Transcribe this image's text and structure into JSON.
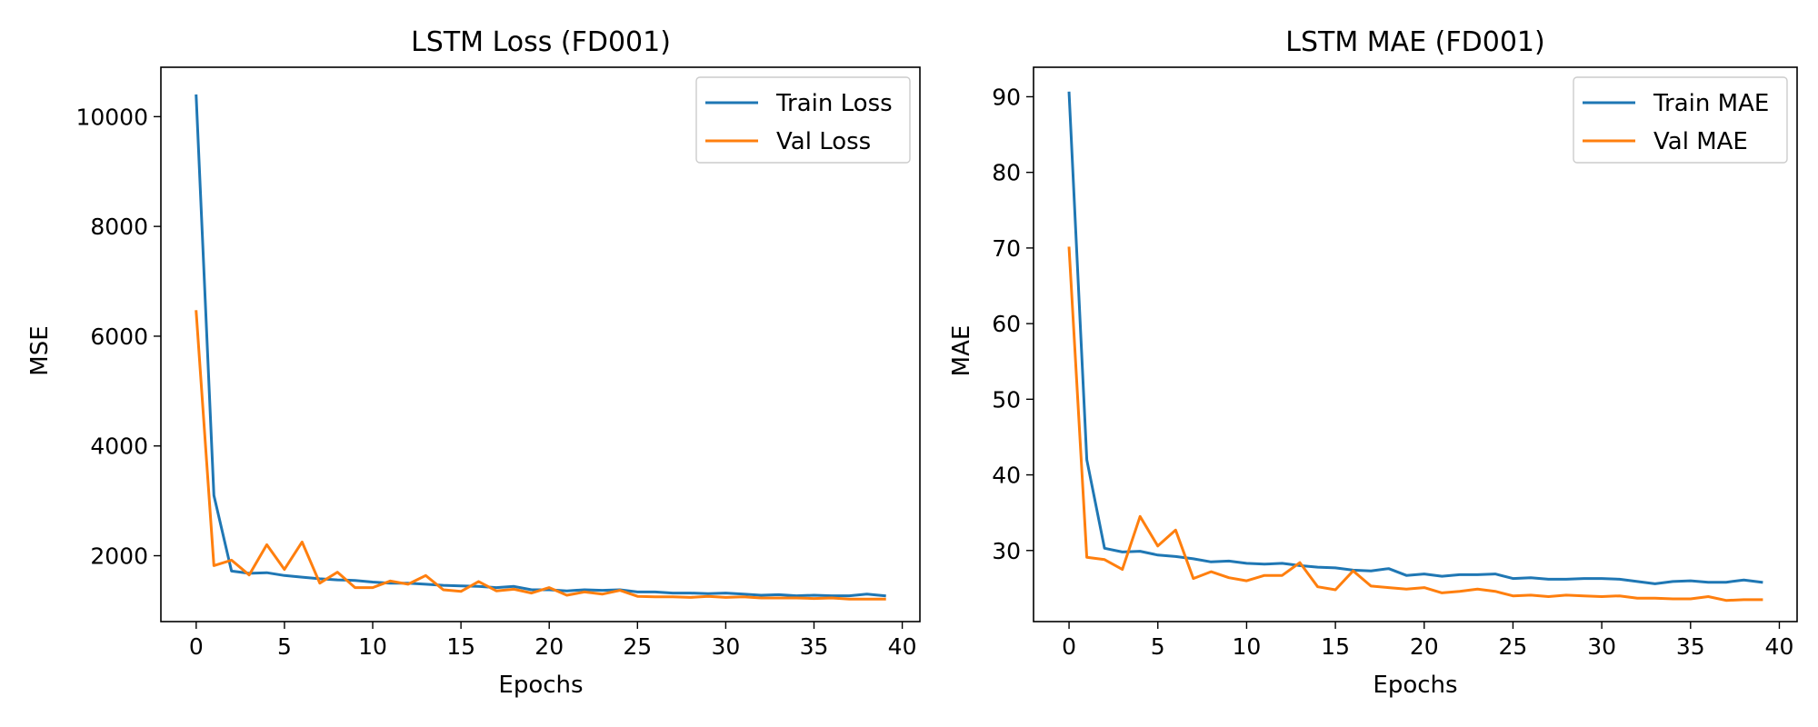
{
  "chart_data": [
    {
      "type": "line",
      "title": "LSTM Loss (FD001)",
      "xlabel": "Epochs",
      "ylabel": "MSE",
      "xlim": [
        -2,
        41
      ],
      "ylim": [
        800,
        10900
      ],
      "xticks": [
        0,
        5,
        10,
        15,
        20,
        25,
        30,
        35,
        40
      ],
      "yticks": [
        2000,
        4000,
        6000,
        8000,
        10000
      ],
      "legend": "top-right",
      "grid": false,
      "x": [
        0,
        1,
        2,
        3,
        4,
        5,
        6,
        7,
        8,
        9,
        10,
        11,
        12,
        13,
        14,
        15,
        16,
        17,
        18,
        19,
        20,
        21,
        22,
        23,
        24,
        25,
        26,
        27,
        28,
        29,
        30,
        31,
        32,
        33,
        34,
        35,
        36,
        37,
        38,
        39
      ],
      "series": [
        {
          "name": "Train Loss",
          "color": "#1f77b4",
          "values": [
            10380,
            3100,
            1720,
            1680,
            1690,
            1640,
            1610,
            1580,
            1560,
            1550,
            1520,
            1500,
            1500,
            1480,
            1460,
            1450,
            1440,
            1420,
            1440,
            1380,
            1380,
            1360,
            1380,
            1370,
            1380,
            1340,
            1340,
            1320,
            1320,
            1310,
            1320,
            1300,
            1280,
            1290,
            1270,
            1280,
            1270,
            1270,
            1300,
            1270
          ]
        },
        {
          "name": "Val Loss",
          "color": "#ff7f0e",
          "values": [
            6450,
            1820,
            1920,
            1650,
            2200,
            1750,
            2250,
            1500,
            1700,
            1420,
            1420,
            1540,
            1480,
            1640,
            1380,
            1350,
            1530,
            1360,
            1390,
            1320,
            1420,
            1280,
            1340,
            1300,
            1370,
            1260,
            1250,
            1250,
            1240,
            1260,
            1240,
            1250,
            1230,
            1230,
            1230,
            1220,
            1230,
            1210,
            1210,
            1210
          ]
        }
      ]
    },
    {
      "type": "line",
      "title": "LSTM MAE (FD001)",
      "xlabel": "Epochs",
      "ylabel": "MAE",
      "xlim": [
        -2,
        41
      ],
      "ylim": [
        20.6,
        93.9
      ],
      "xticks": [
        0,
        5,
        10,
        15,
        20,
        25,
        30,
        35,
        40
      ],
      "yticks": [
        30,
        40,
        50,
        60,
        70,
        80,
        90
      ],
      "legend": "top-right",
      "grid": false,
      "x": [
        0,
        1,
        2,
        3,
        4,
        5,
        6,
        7,
        8,
        9,
        10,
        11,
        12,
        13,
        14,
        15,
        16,
        17,
        18,
        19,
        20,
        21,
        22,
        23,
        24,
        25,
        26,
        27,
        28,
        29,
        30,
        31,
        32,
        33,
        34,
        35,
        36,
        37,
        38,
        39
      ],
      "series": [
        {
          "name": "Train MAE",
          "color": "#1f77b4",
          "values": [
            90.5,
            42.0,
            30.3,
            29.8,
            29.9,
            29.4,
            29.2,
            28.9,
            28.5,
            28.6,
            28.3,
            28.2,
            28.3,
            28.0,
            27.8,
            27.7,
            27.4,
            27.3,
            27.6,
            26.7,
            26.9,
            26.6,
            26.8,
            26.8,
            26.9,
            26.3,
            26.4,
            26.2,
            26.2,
            26.3,
            26.3,
            26.2,
            25.9,
            25.6,
            25.9,
            26.0,
            25.8,
            25.8,
            26.1,
            25.8
          ]
        },
        {
          "name": "Val MAE",
          "color": "#ff7f0e",
          "values": [
            70.0,
            29.1,
            28.8,
            27.5,
            34.5,
            30.6,
            32.7,
            26.3,
            27.2,
            26.4,
            26.0,
            26.7,
            26.7,
            28.4,
            25.2,
            24.8,
            27.3,
            25.3,
            25.1,
            24.9,
            25.1,
            24.4,
            24.6,
            24.9,
            24.6,
            24.0,
            24.1,
            23.9,
            24.1,
            24.0,
            23.9,
            24.0,
            23.7,
            23.7,
            23.6,
            23.6,
            23.9,
            23.4,
            23.5,
            23.5
          ]
        }
      ]
    }
  ]
}
